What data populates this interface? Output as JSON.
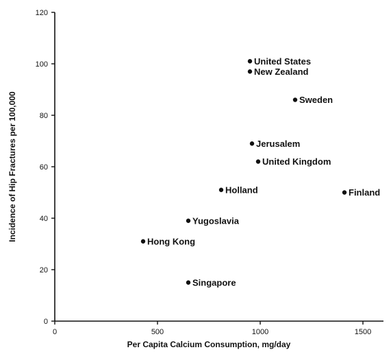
{
  "chart_data": {
    "type": "scatter",
    "title": "",
    "xlabel": "Per Capita Calcium Consumption, mg/day",
    "ylabel": "Incidence of Hip Fractures per 100,000",
    "xlim": [
      0,
      1600
    ],
    "ylim": [
      0,
      120
    ],
    "xticks": [
      0,
      500,
      1000,
      1500
    ],
    "yticks": [
      0,
      20,
      40,
      60,
      80,
      100,
      120
    ],
    "xtick_labels": [
      "0",
      "500",
      "1000",
      "1500"
    ],
    "ytick_labels": [
      "0",
      "20",
      "40",
      "60",
      "80",
      "100",
      "120"
    ],
    "grid": false,
    "points": [
      {
        "label": "United States",
        "x": 950,
        "y": 101
      },
      {
        "label": "New Zealand",
        "x": 950,
        "y": 97
      },
      {
        "label": "Sweden",
        "x": 1170,
        "y": 86
      },
      {
        "label": "Jerusalem",
        "x": 960,
        "y": 69
      },
      {
        "label": "United Kingdom",
        "x": 990,
        "y": 62
      },
      {
        "label": "Holland",
        "x": 810,
        "y": 51
      },
      {
        "label": "Finland",
        "x": 1410,
        "y": 50
      },
      {
        "label": "Yugoslavia",
        "x": 650,
        "y": 39
      },
      {
        "label": "Hong Kong",
        "x": 430,
        "y": 31
      },
      {
        "label": "Singapore",
        "x": 650,
        "y": 15
      }
    ]
  }
}
